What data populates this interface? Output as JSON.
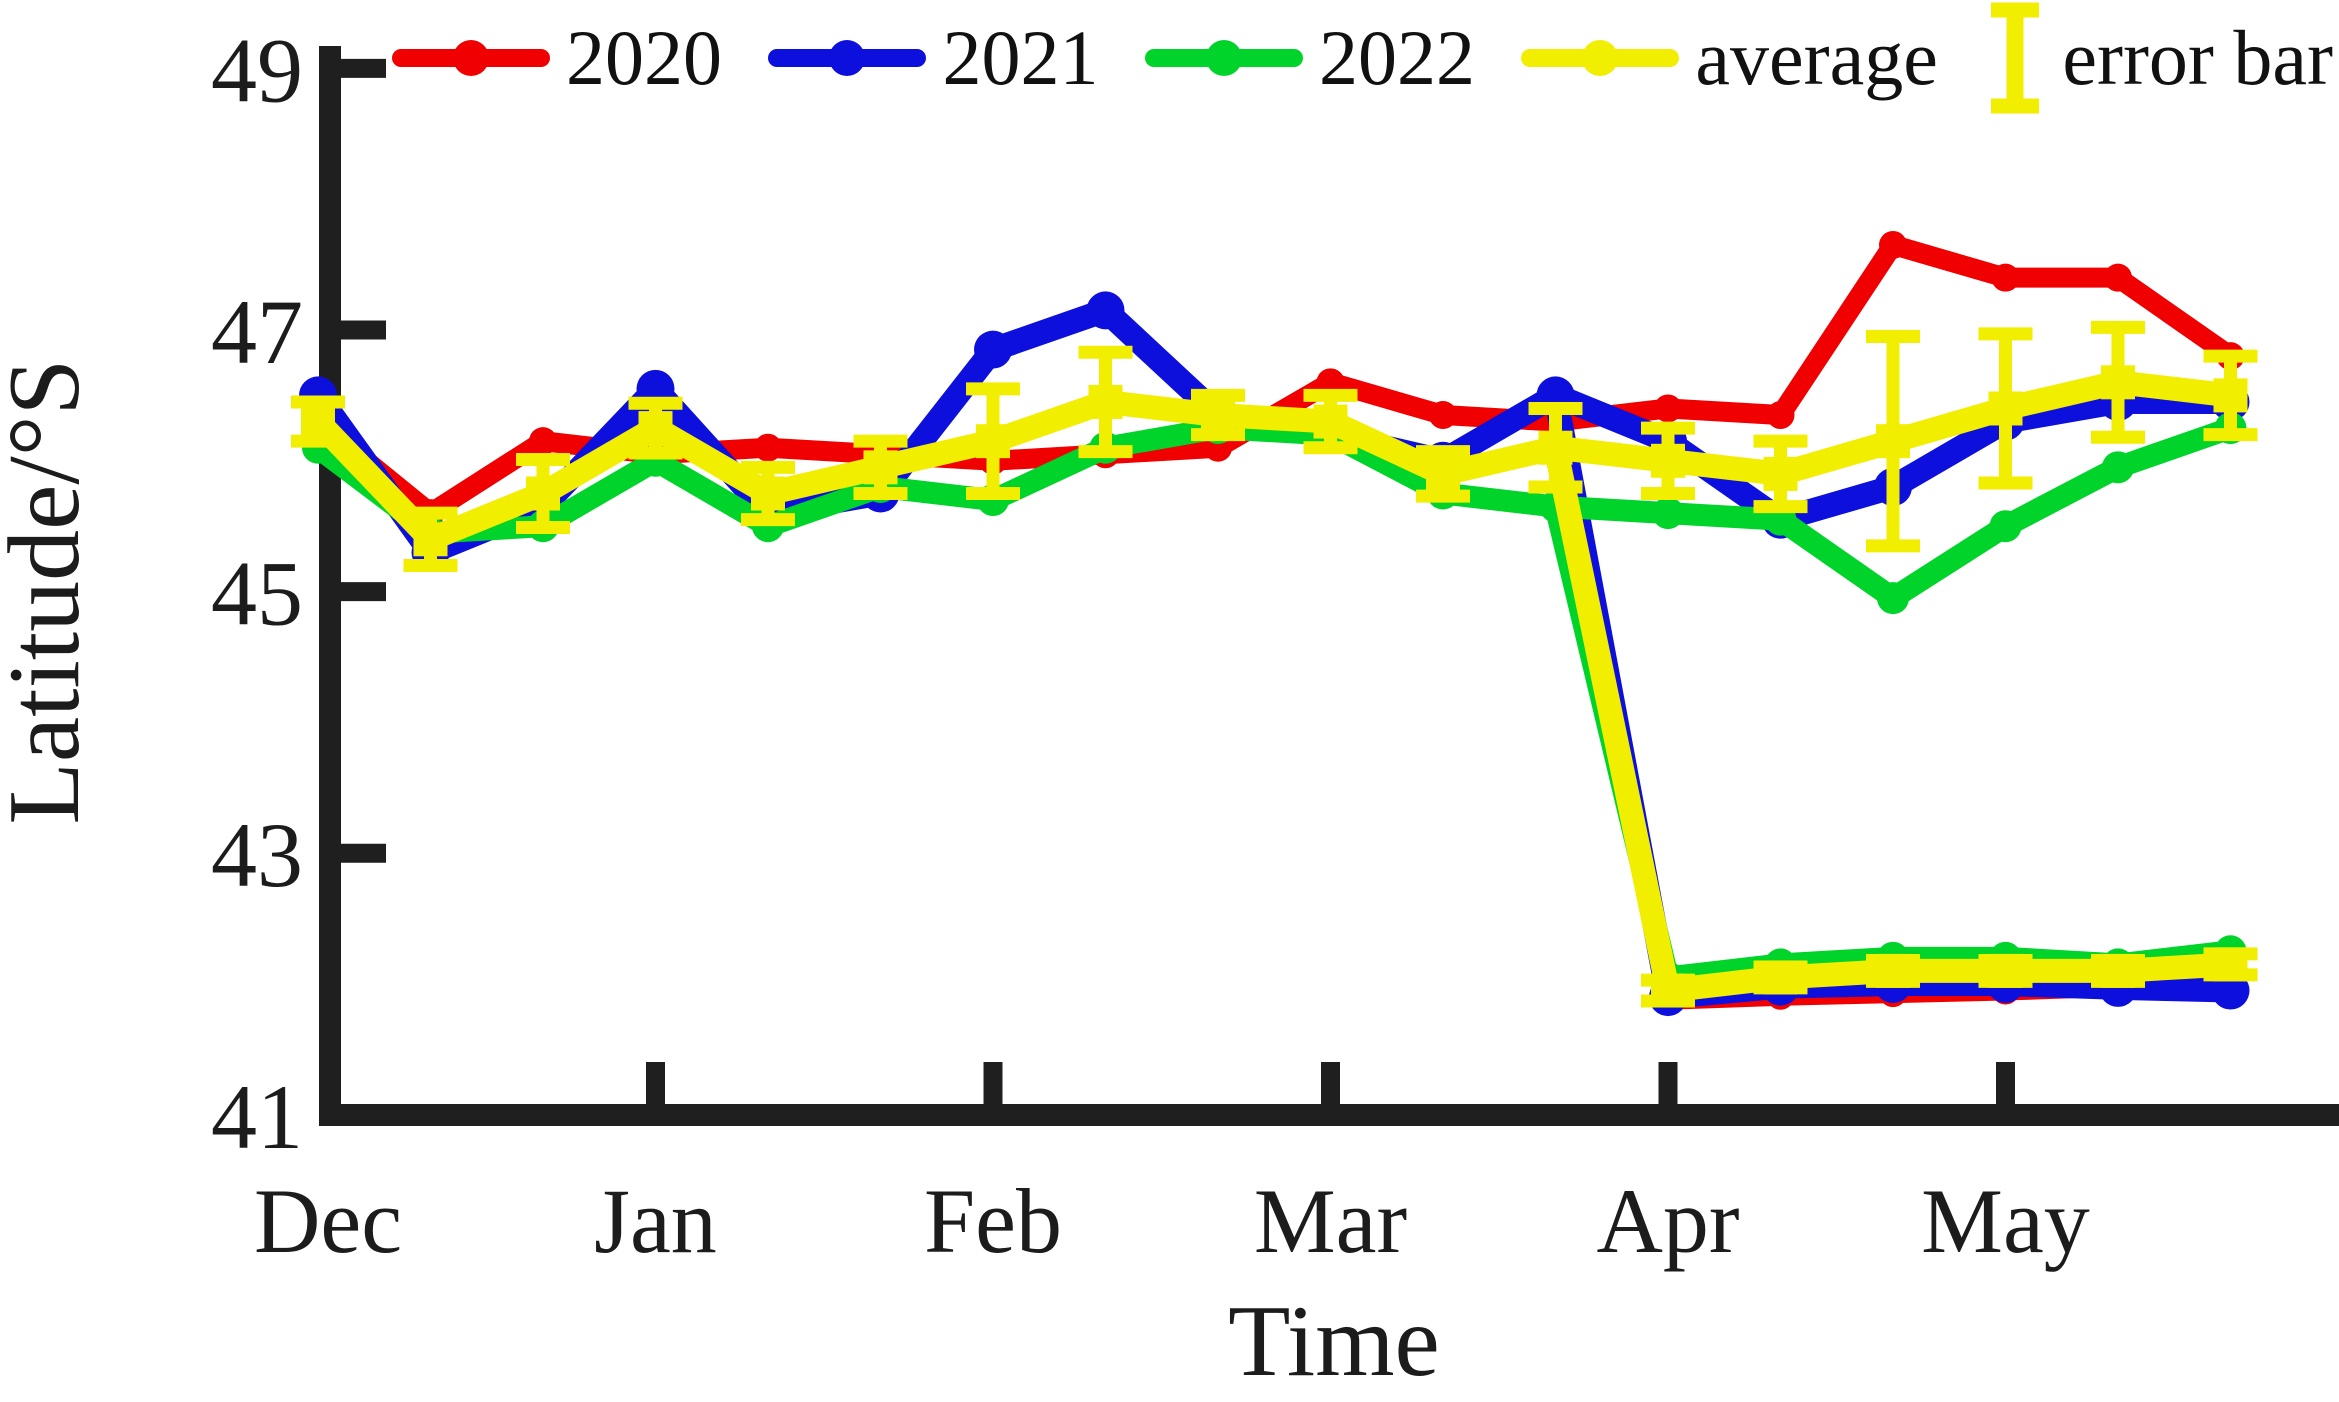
{
  "figure": {
    "background": "#ffffff"
  },
  "chart_data": {
    "type": "line",
    "title": "",
    "xlabel": "Time",
    "ylabel": "Latitude/°S",
    "x_tick_labels": [
      "Dec",
      "Jan",
      "Feb",
      "Mar",
      "Apr",
      "May"
    ],
    "y_ticks": [
      49,
      47,
      45,
      43,
      41
    ],
    "ylim": [
      41,
      49
    ],
    "grid": false,
    "legend_position": "top",
    "legend_error_label": "error bar",
    "point_labels": [
      "Dec 1",
      "Dec 11",
      "Dec 21",
      "Jan 1",
      "Jan 11",
      "Jan 21",
      "Feb 1",
      "Feb 11",
      "Feb 21",
      "Mar 1",
      "Mar 11",
      "Mar 21",
      "Apr 1",
      "Apr 11",
      "Apr 21",
      "May 1",
      "May 11",
      "May 21"
    ],
    "drop_note": "blue/green/yellow fork downward from Mar 21 value to ~42 at Apr 1; red lower branch starts at Apr 1; upper branches continue to May 21",
    "series": [
      {
        "name": "2020",
        "color": "#f00000",
        "marker": "circle",
        "values": [
          46.3,
          45.6,
          46.15,
          46.05,
          46.1,
          46.05,
          46.0,
          46.05,
          46.1,
          46.6,
          46.35,
          46.3,
          46.4,
          46.35,
          47.65,
          47.4,
          47.4,
          46.8
        ],
        "drop_connects": false,
        "drop_values": [
          41.88,
          41.91,
          41.93,
          41.95,
          41.98,
          42.02
        ]
      },
      {
        "name": "2021",
        "color": "#0d0fdd",
        "marker": "circle",
        "values": [
          46.5,
          45.3,
          45.65,
          46.55,
          45.6,
          45.75,
          46.85,
          47.15,
          46.35,
          46.2,
          46.0,
          46.5,
          46.15,
          45.55,
          45.8,
          46.3,
          46.45,
          46.45
        ],
        "drop_connects": true,
        "drop_values": [
          41.9,
          41.98,
          42.0,
          42.0,
          41.97,
          41.95
        ]
      },
      {
        "name": "2022",
        "color": "#00d42a",
        "marker": "circle",
        "values": [
          46.1,
          45.45,
          45.5,
          46.0,
          45.5,
          45.8,
          45.7,
          46.1,
          46.25,
          46.2,
          45.75,
          45.65,
          45.6,
          45.55,
          44.95,
          45.5,
          45.95,
          46.25
        ],
        "drop_connects": true,
        "drop_values": [
          42.05,
          42.15,
          42.2,
          42.2,
          42.15,
          42.25
        ]
      },
      {
        "name": "average",
        "color": "#f2ee00",
        "marker": "square",
        "values": [
          46.3,
          45.4,
          45.75,
          46.25,
          45.75,
          45.95,
          46.15,
          46.45,
          46.35,
          46.3,
          45.9,
          46.1,
          46.0,
          45.9,
          46.15,
          46.4,
          46.6,
          46.5
        ],
        "errors": [
          0.15,
          0.2,
          0.26,
          0.19,
          0.2,
          0.2,
          0.4,
          0.38,
          0.15,
          0.2,
          0.17,
          0.3,
          0.25,
          0.25,
          0.8,
          0.57,
          0.42,
          0.3
        ],
        "drop_connects": true,
        "drop_values": [
          41.95,
          42.05,
          42.1,
          42.1,
          42.1,
          42.15
        ],
        "drop_errors": [
          0.08,
          0.08,
          0.08,
          0.08,
          0.08,
          0.08
        ]
      }
    ]
  }
}
